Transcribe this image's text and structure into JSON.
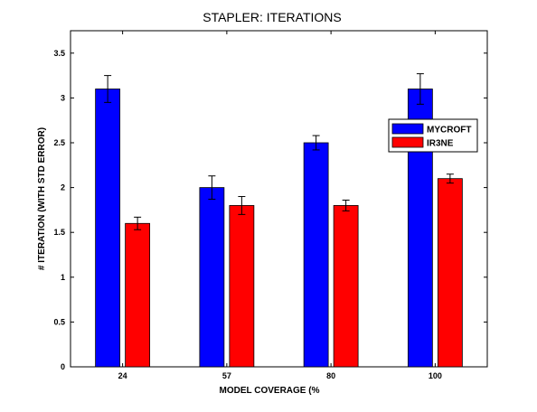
{
  "chart_data": {
    "type": "bar",
    "title": "STAPLER: ITERATIONS",
    "xlabel": "MODEL COVERAGE (%",
    "ylabel": "# ITERATION (WITH STD ERROR)",
    "categories": [
      "24",
      "57",
      "80",
      "100"
    ],
    "ylim": [
      0,
      3.75
    ],
    "yticks": [
      "0",
      "0.5",
      "1",
      "1.5",
      "2",
      "2.5",
      "3",
      "3.5"
    ],
    "grid": false,
    "legend_position": "right",
    "series": [
      {
        "name": "MYCROFT",
        "color": "#0000ff",
        "values": [
          3.1,
          2.0,
          2.5,
          3.1
        ],
        "errors": [
          0.15,
          0.13,
          0.08,
          0.17
        ]
      },
      {
        "name": "IR3NE",
        "color": "#ff0000",
        "values": [
          1.6,
          1.8,
          1.8,
          2.1
        ],
        "errors": [
          0.07,
          0.1,
          0.06,
          0.05
        ]
      }
    ]
  }
}
